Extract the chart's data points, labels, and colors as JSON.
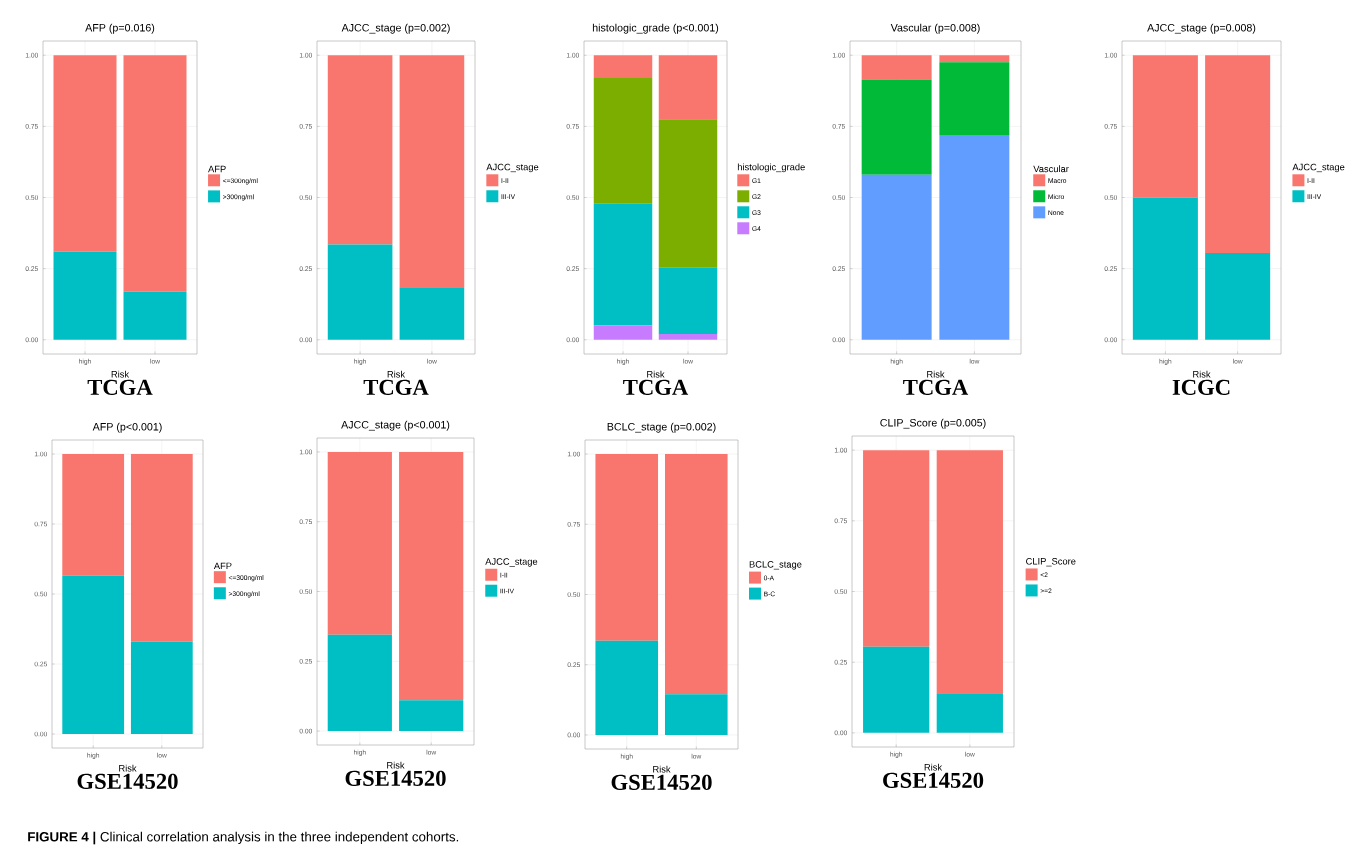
{
  "chart_data": [
    {
      "type": "bar",
      "stacked": true,
      "title": "AFP (p=0.016)",
      "xlabel": "Risk",
      "categories": [
        "high",
        "low"
      ],
      "legend": "right",
      "legend_title": "AFP",
      "grid": true,
      "ylim": [
        -0.05,
        1.05
      ],
      "yticks": [
        {
          "value": 0,
          "label": "0.00"
        },
        {
          "value": 0.25,
          "label": "0.25"
        },
        {
          "value": 0.5,
          "label": "0.50"
        },
        {
          "value": 0.75,
          "label": "0.75"
        },
        {
          "value": 1,
          "label": "1.00"
        }
      ],
      "annotations": [
        "TCGA"
      ],
      "series": [
        {
          "name": ">300ng/ml",
          "color": "#00BFC4",
          "values": [
            0.31,
            0.17
          ]
        },
        {
          "name": "<=300ng/ml",
          "color": "#F8766D",
          "values": [
            0.69,
            0.83
          ]
        }
      ]
    },
    {
      "type": "bar",
      "stacked": true,
      "title": "AJCC_stage (p=0.002)",
      "xlabel": "Risk",
      "categories": [
        "high",
        "low"
      ],
      "legend": "right",
      "legend_title": "AJCC_stage",
      "grid": true,
      "ylim": [
        -0.05,
        1.05
      ],
      "yticks": [
        {
          "value": 0,
          "label": "0.00"
        },
        {
          "value": 0.25,
          "label": "0.25"
        },
        {
          "value": 0.5,
          "label": "0.50"
        },
        {
          "value": 0.75,
          "label": "0.75"
        },
        {
          "value": 1,
          "label": "1.00"
        }
      ],
      "annotations": [
        "TCGA"
      ],
      "series": [
        {
          "name": "III-IV",
          "color": "#00BFC4",
          "values": [
            0.335,
            0.185
          ]
        },
        {
          "name": "I-II",
          "color": "#F8766D",
          "values": [
            0.665,
            0.815
          ]
        }
      ]
    },
    {
      "type": "bar",
      "stacked": true,
      "title": "histologic_grade (p<0.001)",
      "xlabel": "Risk",
      "categories": [
        "high",
        "low"
      ],
      "legend": "right",
      "legend_title": "histologic_grade",
      "grid": true,
      "ylim": [
        -0.05,
        1.05
      ],
      "yticks": [
        {
          "value": 0,
          "label": "0.00"
        },
        {
          "value": 0.25,
          "label": "0.25"
        },
        {
          "value": 0.5,
          "label": "0.50"
        },
        {
          "value": 0.75,
          "label": "0.75"
        },
        {
          "value": 1,
          "label": "1.00"
        }
      ],
      "annotations": [
        "TCGA"
      ],
      "series": [
        {
          "name": "G4",
          "color": "#C77CFF",
          "values": [
            0.05,
            0.02
          ]
        },
        {
          "name": "G3",
          "color": "#00BFC4",
          "values": [
            0.43,
            0.235
          ]
        },
        {
          "name": "G2",
          "color": "#7CAE00",
          "values": [
            0.44,
            0.52
          ]
        },
        {
          "name": "G1",
          "color": "#F8766D",
          "values": [
            0.08,
            0.225
          ]
        }
      ]
    },
    {
      "type": "bar",
      "stacked": true,
      "title": "Vascular (p=0.008)",
      "xlabel": "Risk",
      "categories": [
        "high",
        "low"
      ],
      "legend": "right",
      "legend_title": "Vascular",
      "grid": true,
      "ylim": [
        -0.05,
        1.05
      ],
      "yticks": [
        {
          "value": 0,
          "label": "0.00"
        },
        {
          "value": 0.25,
          "label": "0.25"
        },
        {
          "value": 0.5,
          "label": "0.50"
        },
        {
          "value": 0.75,
          "label": "0.75"
        },
        {
          "value": 1,
          "label": "1.00"
        }
      ],
      "annotations": [
        "TCGA"
      ],
      "series": [
        {
          "name": "None",
          "color": "#619CFF",
          "values": [
            0.58,
            0.72
          ]
        },
        {
          "name": "Micro",
          "color": "#00BA38",
          "values": [
            0.335,
            0.255
          ]
        },
        {
          "name": "Macro",
          "color": "#F8766D",
          "values": [
            0.085,
            0.025
          ]
        }
      ]
    },
    {
      "type": "bar",
      "stacked": true,
      "title": "AJCC_stage (p=0.008)",
      "xlabel": "Risk",
      "categories": [
        "high",
        "low"
      ],
      "legend": "right",
      "legend_title": "AJCC_stage",
      "grid": true,
      "ylim": [
        -0.05,
        1.05
      ],
      "yticks": [
        {
          "value": 0,
          "label": "0.00"
        },
        {
          "value": 0.25,
          "label": "0.25"
        },
        {
          "value": 0.5,
          "label": "0.50"
        },
        {
          "value": 0.75,
          "label": "0.75"
        },
        {
          "value": 1,
          "label": "1.00"
        }
      ],
      "annotations": [
        "ICGC"
      ],
      "series": [
        {
          "name": "III-IV",
          "color": "#00BFC4",
          "values": [
            0.5,
            0.305
          ]
        },
        {
          "name": "I-II",
          "color": "#F8766D",
          "values": [
            0.5,
            0.695
          ]
        }
      ]
    },
    {
      "type": "bar",
      "stacked": true,
      "title": "AFP (p<0.001)",
      "xlabel": "Risk",
      "categories": [
        "high",
        "low"
      ],
      "legend": "right",
      "legend_title": "AFP",
      "grid": true,
      "ylim": [
        -0.05,
        1.05
      ],
      "yticks": [
        {
          "value": 0,
          "label": "0.00"
        },
        {
          "value": 0.25,
          "label": "0.25"
        },
        {
          "value": 0.5,
          "label": "0.50"
        },
        {
          "value": 0.75,
          "label": "0.75"
        },
        {
          "value": 1,
          "label": "1.00"
        }
      ],
      "annotations": [
        "GSE14520"
      ],
      "series": [
        {
          "name": ">300ng/ml",
          "color": "#00BFC4",
          "values": [
            0.565,
            0.33
          ]
        },
        {
          "name": "<=300ng/ml",
          "color": "#F8766D",
          "values": [
            0.435,
            0.67
          ]
        }
      ]
    },
    {
      "type": "bar",
      "stacked": true,
      "title": "AJCC_stage (p<0.001)",
      "xlabel": "Risk",
      "categories": [
        "high",
        "low"
      ],
      "legend": "right",
      "legend_title": "AJCC_stage",
      "grid": true,
      "ylim": [
        -0.05,
        1.05
      ],
      "yticks": [
        {
          "value": 0,
          "label": "0.00"
        },
        {
          "value": 0.25,
          "label": "0.25"
        },
        {
          "value": 0.5,
          "label": "0.50"
        },
        {
          "value": 0.75,
          "label": "0.75"
        },
        {
          "value": 1,
          "label": "1.00"
        }
      ],
      "annotations": [
        "GSE14520"
      ],
      "series": [
        {
          "name": "III-IV",
          "color": "#00BFC4",
          "values": [
            0.345,
            0.11
          ]
        },
        {
          "name": "I-II",
          "color": "#F8766D",
          "values": [
            0.655,
            0.89
          ]
        }
      ]
    },
    {
      "type": "bar",
      "stacked": true,
      "title": "BCLC_stage (p=0.002)",
      "xlabel": "Risk",
      "categories": [
        "high",
        "low"
      ],
      "legend": "right",
      "legend_title": "BCLC_stage",
      "grid": true,
      "ylim": [
        -0.05,
        1.05
      ],
      "yticks": [
        {
          "value": 0,
          "label": "0.00"
        },
        {
          "value": 0.25,
          "label": "0.25"
        },
        {
          "value": 0.5,
          "label": "0.50"
        },
        {
          "value": 0.75,
          "label": "0.75"
        },
        {
          "value": 1,
          "label": "1.00"
        }
      ],
      "annotations": [
        "GSE14520"
      ],
      "series": [
        {
          "name": "B-C",
          "color": "#00BFC4",
          "values": [
            0.335,
            0.145
          ]
        },
        {
          "name": "0-A",
          "color": "#F8766D",
          "values": [
            0.665,
            0.855
          ]
        }
      ]
    },
    {
      "type": "bar",
      "stacked": true,
      "title": "CLIP_Score (p=0.005)",
      "xlabel": "Risk",
      "categories": [
        "high",
        "low"
      ],
      "legend": "right",
      "legend_title": "CLIP_Score",
      "grid": true,
      "ylim": [
        -0.05,
        1.05
      ],
      "yticks": [
        {
          "value": 0,
          "label": "0.00"
        },
        {
          "value": 0.25,
          "label": "0.25"
        },
        {
          "value": 0.5,
          "label": "0.50"
        },
        {
          "value": 0.75,
          "label": "0.75"
        },
        {
          "value": 1,
          "label": "1.00"
        }
      ],
      "annotations": [
        "GSE14520",
        "**FIGURE 4 |** Clinical correlation analysis in the three independent cohorts."
      ],
      "series": [
        {
          "name": ">=2",
          "color": "#00BFC4",
          "values": [
            0.305,
            0.14
          ]
        },
        {
          "name": "<2",
          "color": "#F8766D",
          "values": [
            0.695,
            0.86
          ]
        }
      ]
    }
  ]
}
